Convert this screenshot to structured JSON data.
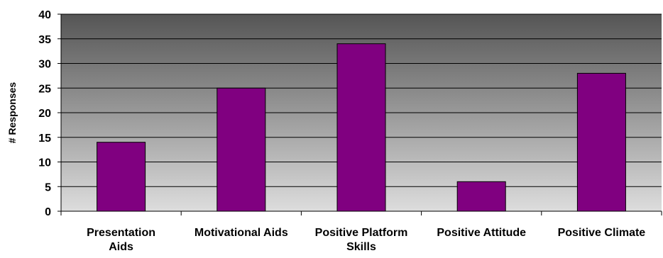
{
  "chart_data": {
    "type": "bar",
    "categories": [
      "Presentation Aids",
      "Motivational Aids",
      "Positive Platform Skills",
      "Positive Attitude",
      "Positive Climate"
    ],
    "category_lines": [
      [
        "Presentation",
        "Aids"
      ],
      [
        "Motivational Aids"
      ],
      [
        "Positive Platform",
        "Skills"
      ],
      [
        "Positive Attitude"
      ],
      [
        "Positive Climate"
      ]
    ],
    "values": [
      14,
      25,
      34,
      6,
      28
    ],
    "title": "",
    "xlabel": "",
    "ylabel": "# Responses",
    "ylim": [
      0,
      40
    ],
    "yticks": [
      0,
      5,
      10,
      15,
      20,
      25,
      30,
      35,
      40
    ],
    "grid": true,
    "legend": "none",
    "colors": {
      "bar": "#800080",
      "bar_edge": "#000000",
      "plot_gradient_top": "#555555",
      "plot_gradient_bottom": "#dddddd",
      "gridline": "#000000"
    }
  }
}
